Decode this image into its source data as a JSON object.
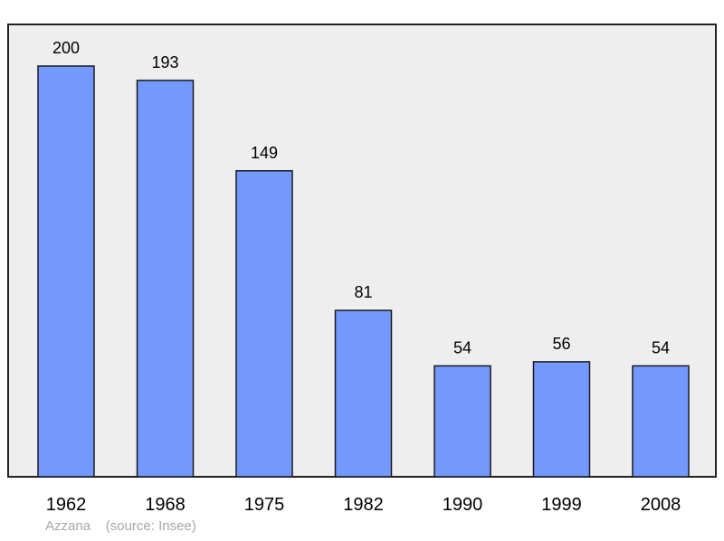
{
  "chart_data": {
    "type": "bar",
    "categories": [
      "1962",
      "1968",
      "1975",
      "1982",
      "1990",
      "1999",
      "2008"
    ],
    "values": [
      200,
      193,
      149,
      81,
      54,
      56,
      54
    ],
    "data_labels": [
      "200",
      "193",
      "149",
      "81",
      "54",
      "56",
      "54"
    ],
    "title": "",
    "xlabel": "",
    "ylabel": "",
    "ylim": [
      0,
      200
    ],
    "grid": false,
    "legend": "none",
    "bar_color": "#7399ff",
    "plot_background": "#eeeeee"
  },
  "caption": {
    "place": "Azzana",
    "source": "(source: Insee)"
  }
}
